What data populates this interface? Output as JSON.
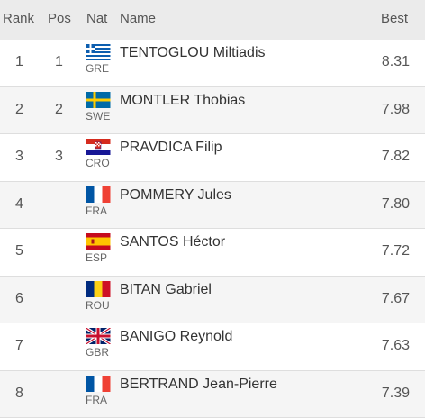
{
  "header": {
    "rank": "Rank",
    "pos": "Pos",
    "nat": "Nat",
    "name": "Name",
    "best": "Best"
  },
  "rows": [
    {
      "rank": "1",
      "pos": "1",
      "nat": "GRE",
      "flag": "greece-flag-icon",
      "name": "TENTOGLOU Miltiadis",
      "best": "8.31"
    },
    {
      "rank": "2",
      "pos": "2",
      "nat": "SWE",
      "flag": "sweden-flag-icon",
      "name": "MONTLER Thobias",
      "best": "7.98"
    },
    {
      "rank": "3",
      "pos": "3",
      "nat": "CRO",
      "flag": "croatia-flag-icon",
      "name": "PRAVDICA Filip",
      "best": "7.82"
    },
    {
      "rank": "4",
      "pos": "",
      "nat": "FRA",
      "flag": "france-flag-icon",
      "name": "POMMERY Jules",
      "best": "7.80"
    },
    {
      "rank": "5",
      "pos": "",
      "nat": "ESP",
      "flag": "spain-flag-icon",
      "name": "SANTOS Héctor",
      "best": "7.72"
    },
    {
      "rank": "6",
      "pos": "",
      "nat": "ROU",
      "flag": "romania-flag-icon",
      "name": "BITAN Gabriel",
      "best": "7.67"
    },
    {
      "rank": "7",
      "pos": "",
      "nat": "GBR",
      "flag": "uk-flag-icon",
      "name": "BANIGO Reynold",
      "best": "7.63"
    },
    {
      "rank": "8",
      "pos": "",
      "nat": "FRA",
      "flag": "france-flag-icon",
      "name": "BERTRAND Jean-Pierre",
      "best": "7.39"
    }
  ],
  "colors": {
    "header_bg": "#ebebeb",
    "row_alt_bg": "#f5f5f5",
    "divider": "#dedede"
  }
}
